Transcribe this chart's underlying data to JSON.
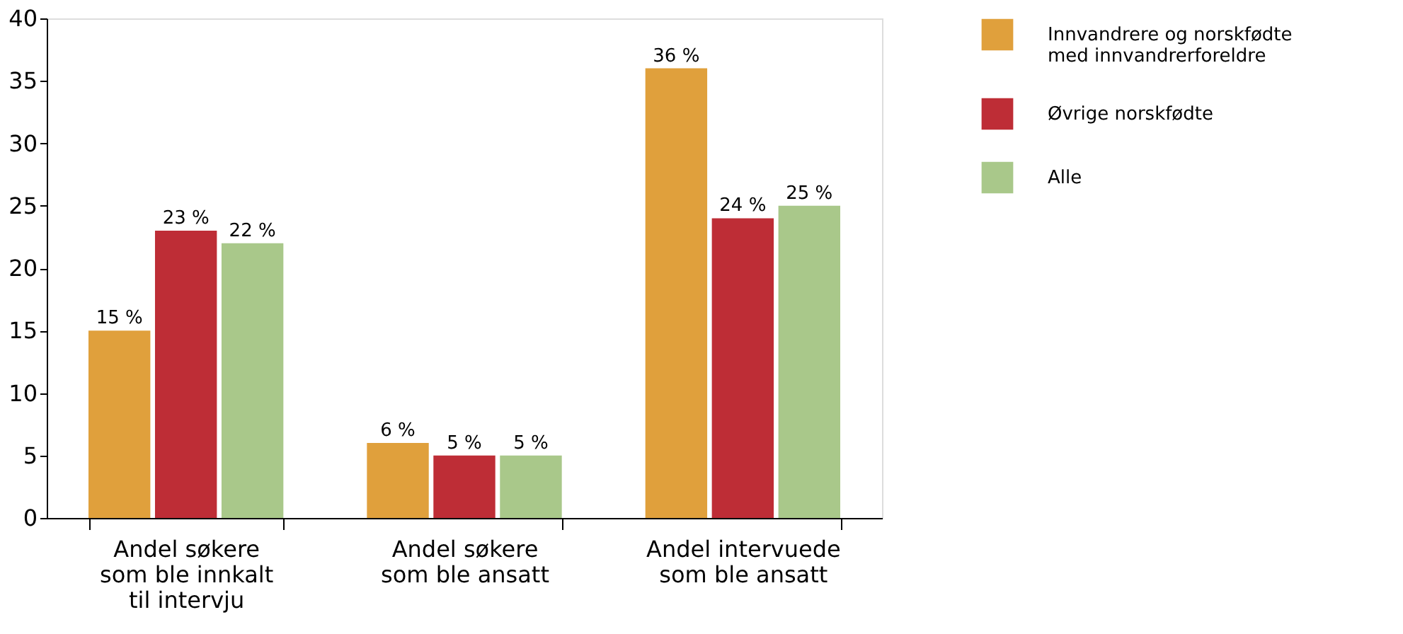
{
  "chart_data": {
    "type": "bar",
    "categories": [
      "Andel søkere\nsom ble innkalt\ntil intervju",
      "Andel søkere\nsom ble ansatt",
      "Andel intervuede\nsom ble ansatt"
    ],
    "series": [
      {
        "name": "Innvandrere og norskfødte\nmed innvandrerforeldre",
        "color": "#e0a03c",
        "values": [
          15,
          6,
          36
        ],
        "value_labels": [
          "15 %",
          "6 %",
          "36 %"
        ]
      },
      {
        "name": "Øvrige norskfødte",
        "color": "#be2d36",
        "values": [
          23,
          5,
          24
        ],
        "value_labels": [
          "23 %",
          "5 %",
          "24 %"
        ]
      },
      {
        "name": "Alle",
        "color": "#a9c88a",
        "values": [
          22,
          5,
          25
        ],
        "value_labels": [
          "22 %",
          "5 %",
          "25 %"
        ]
      }
    ],
    "ylim": [
      0,
      40
    ],
    "yticks": [
      0,
      5,
      10,
      15,
      20,
      25,
      30,
      35,
      40
    ],
    "grid": false,
    "legend": "right"
  }
}
